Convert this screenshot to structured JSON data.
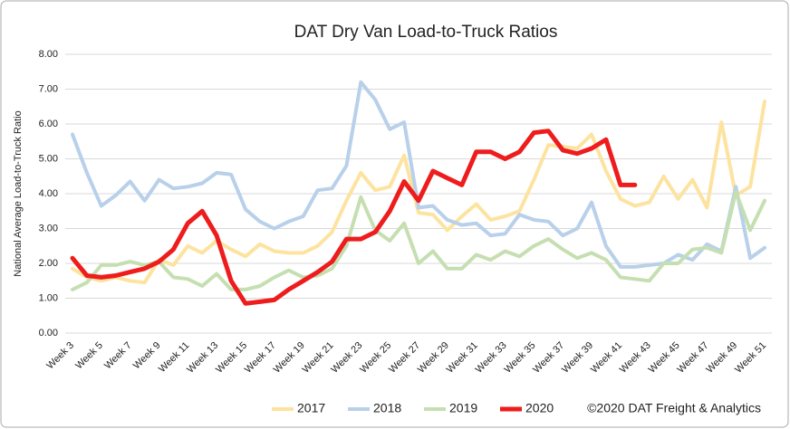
{
  "chart_data": {
    "type": "line",
    "title": "DAT Dry Van Load-to-Truck Ratios",
    "y_label": "National Average Load-to-Truck Ratio",
    "credit": "©2020 DAT Freight & Analytics",
    "categories": [
      "Week 3",
      null,
      "Week 5",
      null,
      "Week 7",
      null,
      "Week 9",
      null,
      "Week 11",
      null,
      "Week 13",
      null,
      "Week 15",
      null,
      "Week 17",
      null,
      "Week 19",
      null,
      "Week 21",
      null,
      "Week 23",
      null,
      "Week 25",
      null,
      "Week 27",
      null,
      "Week 29",
      null,
      "Week 31",
      null,
      "Week 33",
      null,
      "Week 35",
      null,
      "Week 37",
      null,
      "Week 39",
      null,
      "Week 41",
      null,
      "Week 43",
      null,
      "Week 45",
      null,
      "Week 47",
      null,
      "Week 49",
      null,
      "Week 51"
    ],
    "series": [
      {
        "name": "2017",
        "color": "#fde3a0",
        "width": 4,
        "values": [
          1.85,
          1.6,
          1.5,
          1.6,
          1.5,
          1.45,
          2.1,
          1.95,
          2.5,
          2.3,
          2.65,
          2.4,
          2.2,
          2.55,
          2.35,
          2.3,
          2.3,
          2.5,
          2.9,
          3.8,
          4.6,
          4.1,
          4.2,
          5.1,
          3.45,
          3.4,
          2.95,
          3.35,
          3.7,
          3.25,
          3.35,
          3.5,
          4.4,
          5.4,
          5.35,
          5.3,
          5.7,
          4.65,
          3.85,
          3.65,
          3.75,
          4.5,
          3.85,
          4.4,
          3.6,
          6.05,
          3.95,
          4.2,
          6.65
        ]
      },
      {
        "name": "2018",
        "color": "#b8d0ea",
        "width": 4,
        "values": [
          5.7,
          4.6,
          3.65,
          3.95,
          4.35,
          3.8,
          4.4,
          4.15,
          4.2,
          4.3,
          4.6,
          4.55,
          3.55,
          3.2,
          3.0,
          3.2,
          3.35,
          4.1,
          4.15,
          4.8,
          7.2,
          6.7,
          5.85,
          6.05,
          3.6,
          3.65,
          3.25,
          3.1,
          3.15,
          2.8,
          2.85,
          3.4,
          3.25,
          3.2,
          2.8,
          3.0,
          3.75,
          2.5,
          1.9,
          1.9,
          1.95,
          2.0,
          2.25,
          2.1,
          2.55,
          2.35,
          4.2,
          2.15,
          2.45
        ]
      },
      {
        "name": "2019",
        "color": "#c5dfb1",
        "width": 4,
        "values": [
          1.25,
          1.45,
          1.95,
          1.95,
          2.05,
          1.95,
          2.05,
          1.6,
          1.55,
          1.35,
          1.7,
          1.25,
          1.25,
          1.35,
          1.6,
          1.8,
          1.6,
          1.65,
          1.85,
          2.5,
          3.9,
          2.95,
          2.65,
          3.15,
          2.0,
          2.35,
          1.85,
          1.85,
          2.25,
          2.1,
          2.35,
          2.2,
          2.5,
          2.7,
          2.4,
          2.15,
          2.3,
          2.1,
          1.6,
          1.55,
          1.5,
          2.0,
          2.0,
          2.4,
          2.45,
          2.3,
          4.05,
          2.95,
          3.8
        ]
      },
      {
        "name": "2020",
        "color": "#ee1c1c",
        "width": 5,
        "values": [
          2.15,
          1.65,
          1.6,
          1.65,
          1.75,
          1.85,
          2.05,
          2.4,
          3.15,
          3.5,
          2.8,
          1.5,
          0.85,
          0.9,
          0.95,
          1.25,
          1.5,
          1.75,
          2.05,
          2.7,
          2.7,
          2.9,
          3.5,
          4.35,
          3.8,
          4.65,
          4.45,
          4.25,
          5.2,
          5.2,
          5.0,
          5.2,
          5.75,
          5.8,
          5.25,
          5.15,
          5.3,
          5.55,
          4.25,
          4.25,
          null,
          null,
          null,
          null,
          null,
          null,
          null,
          null,
          null
        ]
      }
    ],
    "ylim": [
      0,
      8
    ],
    "yticks": [
      {
        "value": 0,
        "label": "0.00"
      },
      {
        "value": 1,
        "label": "1.00"
      },
      {
        "value": 2,
        "label": "2.00"
      },
      {
        "value": 3,
        "label": "3.00"
      },
      {
        "value": 4,
        "label": "4.00"
      },
      {
        "value": 5,
        "label": "5.00"
      },
      {
        "value": 6,
        "label": "6.00"
      },
      {
        "value": 7,
        "label": "7.00"
      },
      {
        "value": 8,
        "label": "8.00"
      }
    ],
    "grid": true,
    "legend": "bottom"
  }
}
